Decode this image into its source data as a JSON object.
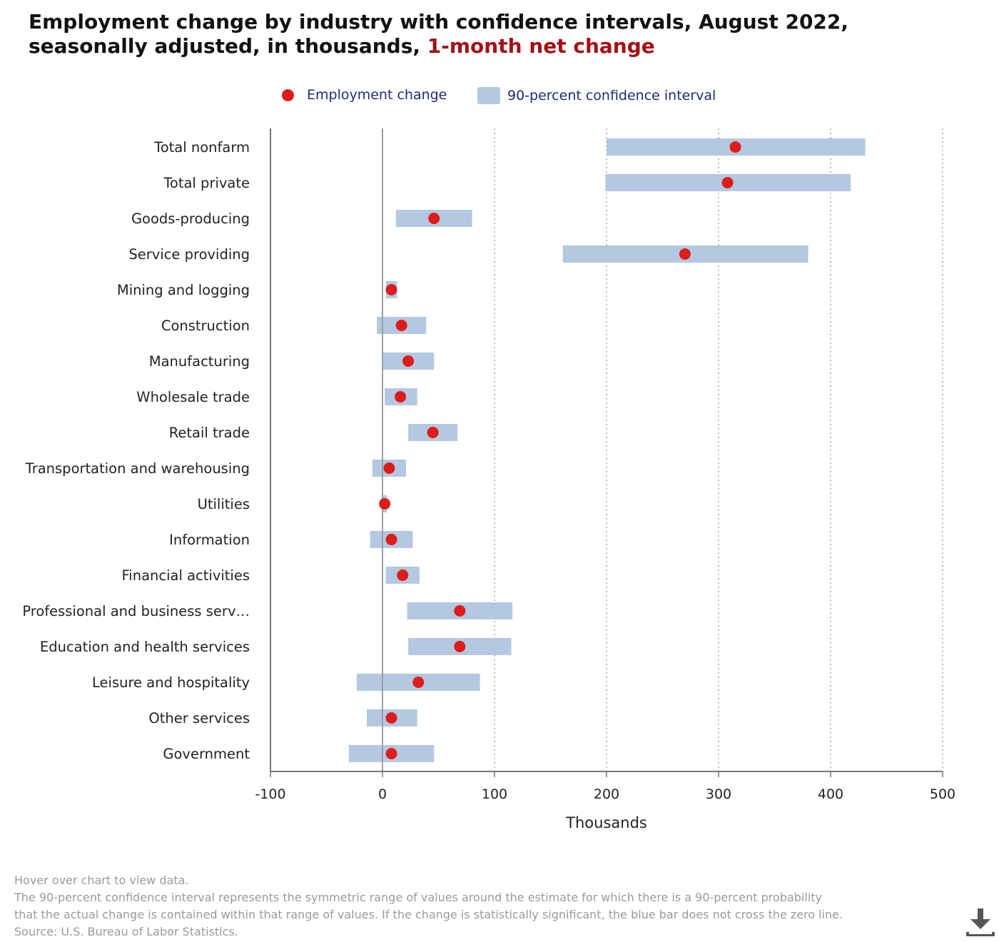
{
  "title": {
    "main": "Employment change by industry with confidence intervals, August 2022, seasonally adjusted, in thousands,",
    "highlight": "1-month net change",
    "highlight_color": "#a50f15"
  },
  "legend": {
    "point_label": "Employment change",
    "interval_label": "90-percent confidence interval"
  },
  "colors": {
    "point": "#dd1c1c",
    "interval": "#b4c8e1",
    "legend_text": "#1f2a7a",
    "note_text": "#9a9a9a"
  },
  "notes": [
    "Hover over chart to view data.",
    "The 90-percent confidence interval represents the symmetric range of values around the estimate for which there is a 90-percent probability",
    "that the actual change is contained within that range of values. If the change is statistically significant, the blue bar does not cross the zero line.",
    "Source: U.S. Bureau of Labor Statistics."
  ],
  "download_icon": "download-icon",
  "chart_data": {
    "type": "dot-interval",
    "xlabel": "Thousands",
    "xlim": [
      -100,
      500
    ],
    "xticks": [
      "-100",
      "0",
      "100",
      "200",
      "300",
      "400",
      "500"
    ],
    "grid": "vertical dotted",
    "legend_position": "top-center",
    "categories": [
      "Total nonfarm",
      "Total private",
      "Goods-producing",
      "Service providing",
      "Mining and logging",
      "Construction",
      "Manufacturing",
      "Wholesale trade",
      "Retail trade",
      "Transportation and warehousing",
      "Utilities",
      "Information",
      "Financial activities",
      "Professional and business serv…",
      "Education and health services",
      "Leisure and hospitality",
      "Other services",
      "Government"
    ],
    "series": [
      {
        "name": "Employment change",
        "values": [
          315,
          308,
          46,
          270,
          8,
          17,
          23,
          16,
          45,
          6,
          2,
          8,
          18,
          69,
          69,
          32,
          8,
          8
        ]
      },
      {
        "name": "90-percent confidence interval",
        "low": [
          200,
          199,
          12,
          161,
          3,
          -5,
          0,
          2,
          23,
          -9,
          0,
          -11,
          3,
          22,
          23,
          -23,
          -14,
          -30
        ],
        "high": [
          431,
          418,
          80,
          380,
          13,
          39,
          46,
          31,
          67,
          21,
          4,
          27,
          33,
          116,
          115,
          87,
          31,
          46
        ]
      }
    ]
  }
}
